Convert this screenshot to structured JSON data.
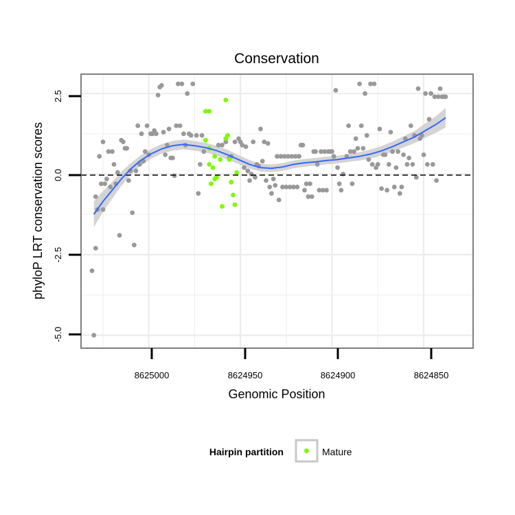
{
  "chart_data": {
    "type": "scatter",
    "title": "Conservation",
    "xlabel": "Genomic Position",
    "ylabel": "phyloP LRT conservation scores",
    "x_reversed": true,
    "xlim": [
      8625037,
      8624823
    ],
    "ylim": [
      -5.4,
      3.1
    ],
    "x_ticks": [
      8625000,
      8624950,
      8624900,
      8624850
    ],
    "x_tick_labels": [
      "8625000",
      "8624950",
      "8624900",
      "8624850"
    ],
    "y_ticks": [
      -5.0,
      -2.5,
      0.0,
      2.5
    ],
    "y_tick_labels": [
      "-5.0",
      "-2.5",
      "0.0",
      "2.5"
    ],
    "grid": true,
    "reference_line": {
      "y": 0,
      "style": "dashed"
    },
    "legend": {
      "title": "Hairpin partition",
      "position": "bottom"
    },
    "colors": {
      "grey_points": "#999999",
      "mature": "#7cfc00",
      "smooth_line": "#3366ff",
      "ribbon": "#cccccc"
    },
    "series": [
      {
        "name": "Mature",
        "legend": true,
        "color": "#7cfc00",
        "points": [
          [
            8624969,
            1.95
          ],
          [
            8624967,
            1.95
          ],
          [
            8624969,
            1.05
          ],
          [
            8624967,
            0.8
          ],
          [
            8624964,
            0.55
          ],
          [
            8624961,
            0.45
          ],
          [
            8624958,
            1.1
          ],
          [
            8624957,
            1.2
          ],
          [
            8624958,
            2.3
          ],
          [
            8624956,
            0.45
          ],
          [
            8624966,
            -0.3
          ],
          [
            8624964,
            -0.15
          ],
          [
            8624963,
            -0.1
          ],
          [
            8624967,
            0.3
          ],
          [
            8624960,
            -1.0
          ],
          [
            8624955,
            -0.25
          ],
          [
            8624954,
            -0.65
          ],
          [
            8624953,
            -0.95
          ],
          [
            8624952,
            0.05
          ],
          [
            8624965,
            0.2
          ]
        ]
      },
      {
        "name": "",
        "legend": false,
        "color": "#999999",
        "points": [
          [
            8625030,
            -5.0
          ],
          [
            8625031,
            -3.0
          ],
          [
            8625029,
            -2.3
          ],
          [
            8625028,
            -1.1
          ],
          [
            8625029,
            -0.7
          ],
          [
            8625027,
            0.55
          ],
          [
            8625026,
            -0.3
          ],
          [
            8625025,
            -1.1
          ],
          [
            8625025,
            1.0
          ],
          [
            8625024,
            -0.3
          ],
          [
            8625023,
            -0.15
          ],
          [
            8625022,
            0.7
          ],
          [
            8625021,
            -0.4
          ],
          [
            8625020,
            0.7
          ],
          [
            8625019,
            0.3
          ],
          [
            8625018,
            -0.3
          ],
          [
            8625017,
            0.05
          ],
          [
            8625016,
            -1.9
          ],
          [
            8625015,
            1.05
          ],
          [
            8625014,
            1.0
          ],
          [
            8625013,
            0.8
          ],
          [
            8625012,
            0.8
          ],
          [
            8625011,
            -0.2
          ],
          [
            8625010,
            0.1
          ],
          [
            8625009,
            -1.2
          ],
          [
            8625008,
            -2.2
          ],
          [
            8625007,
            0.1
          ],
          [
            8625006,
            1.5
          ],
          [
            8625005,
            0.3
          ],
          [
            8625004,
            1.25
          ],
          [
            8625003,
            0.4
          ],
          [
            8625002,
            0.7
          ],
          [
            8625001,
            1.5
          ],
          [
            8625000,
            0.6
          ],
          [
            8624999,
            1.25
          ],
          [
            8624998,
            1.25
          ],
          [
            8624997,
            1.35
          ],
          [
            8624996,
            1.25
          ],
          [
            8624995,
            2.45
          ],
          [
            8624994,
            2.7
          ],
          [
            8624993,
            2.75
          ],
          [
            8624992,
            1.3
          ],
          [
            8624991,
            0.6
          ],
          [
            8624990,
            0.9
          ],
          [
            8624989,
            1.4
          ],
          [
            8624988,
            0.5
          ],
          [
            8624987,
            0.5
          ],
          [
            8624986,
            -0.05
          ],
          [
            8624985,
            1.5
          ],
          [
            8624984,
            2.8
          ],
          [
            8624983,
            1.5
          ],
          [
            8624982,
            2.8
          ],
          [
            8624981,
            1.25
          ],
          [
            8624980,
            0.9
          ],
          [
            8624979,
            2.5
          ],
          [
            8624978,
            1.25
          ],
          [
            8624977,
            1.2
          ],
          [
            8624976,
            2.8
          ],
          [
            8624974,
            1.2
          ],
          [
            8624973,
            -0.6
          ],
          [
            8624972,
            0.3
          ],
          [
            8624971,
            1.2
          ],
          [
            8624970,
            0.7
          ],
          [
            8624962,
            0.9
          ],
          [
            8624960,
            0.9
          ],
          [
            8624958,
            1.0
          ],
          [
            8624956,
            0.5
          ],
          [
            8624955,
            0.55
          ],
          [
            8624953,
            1.0
          ],
          [
            8624951,
            1.1
          ],
          [
            8624950,
            1.0
          ],
          [
            8624949,
            0.9
          ],
          [
            8624948,
            0.2
          ],
          [
            8624947,
            0.85
          ],
          [
            8624946,
            0.1
          ],
          [
            8624945,
            -0.2
          ],
          [
            8624944,
            0.0
          ],
          [
            8624943,
            1.0
          ],
          [
            8624942,
            -0.1
          ],
          [
            8624941,
            0.3
          ],
          [
            8624940,
            0.25
          ],
          [
            8624939,
            1.4
          ],
          [
            8624938,
            0.4
          ],
          [
            8624937,
            1.0
          ],
          [
            8624936,
            -0.2
          ],
          [
            8624935,
            0.95
          ],
          [
            8624934,
            -0.4
          ],
          [
            8624933,
            -0.6
          ],
          [
            8624932,
            -0.15
          ],
          [
            8624931,
            -0.35
          ],
          [
            8624930,
            0.55
          ],
          [
            8624929,
            -0.8
          ],
          [
            8624928,
            0.55
          ],
          [
            8624927,
            -0.4
          ],
          [
            8624926,
            0.55
          ],
          [
            8624925,
            -0.4
          ],
          [
            8624924,
            0.55
          ],
          [
            8624923,
            -0.4
          ],
          [
            8624922,
            0.55
          ],
          [
            8624921,
            -0.4
          ],
          [
            8624920,
            0.55
          ],
          [
            8624919,
            -0.4
          ],
          [
            8624918,
            0.55
          ],
          [
            8624917,
            0.9
          ],
          [
            8624916,
            0.9
          ],
          [
            8624915,
            -0.5
          ],
          [
            8624914,
            -0.3
          ],
          [
            8624913,
            -0.7
          ],
          [
            8624912,
            -0.3
          ],
          [
            8624911,
            -0.7
          ],
          [
            8624910,
            0.7
          ],
          [
            8624909,
            0.7
          ],
          [
            8624908,
            0.3
          ],
          [
            8624907,
            -0.5
          ],
          [
            8624906,
            0.7
          ],
          [
            8624905,
            -0.5
          ],
          [
            8624904,
            0.7
          ],
          [
            8624903,
            -0.5
          ],
          [
            8624902,
            0.7
          ],
          [
            8624901,
            0.7
          ],
          [
            8624900,
            0.7
          ],
          [
            8624899,
            0.55
          ],
          [
            8624898,
            2.6
          ],
          [
            8624897,
            0.2
          ],
          [
            8624896,
            -0.3
          ],
          [
            8624895,
            -0.5
          ],
          [
            8624894,
            0.0
          ],
          [
            8624892,
            0.55
          ],
          [
            8624891,
            1.5
          ],
          [
            8624890,
            0.7
          ],
          [
            8624889,
            -0.3
          ],
          [
            8624888,
            0.7
          ],
          [
            8624887,
            1.1
          ],
          [
            8624886,
            0.8
          ],
          [
            8624885,
            2.8
          ],
          [
            8624884,
            1.5
          ],
          [
            8624883,
            0.8
          ],
          [
            8624882,
            2.5
          ],
          [
            8624881,
            1.2
          ],
          [
            8624880,
            0.45
          ],
          [
            8624879,
            2.8
          ],
          [
            8624878,
            0.3
          ],
          [
            8624877,
            2.8
          ],
          [
            8624876,
            0.2
          ],
          [
            8624875,
            0.3
          ],
          [
            8624874,
            1.4
          ],
          [
            8624873,
            -0.45
          ],
          [
            8624872,
            0.6
          ],
          [
            8624871,
            0.6
          ],
          [
            8624870,
            -0.5
          ],
          [
            8624869,
            0.3
          ],
          [
            8624868,
            1.3
          ],
          [
            8624867,
            0.7
          ],
          [
            8624866,
            -0.4
          ],
          [
            8624865,
            0.2
          ],
          [
            8624864,
            0.7
          ],
          [
            8624863,
            -0.6
          ],
          [
            8624862,
            -0.4
          ],
          [
            8624861,
            0.6
          ],
          [
            8624860,
            1.1
          ],
          [
            8624859,
            0.3
          ],
          [
            8624858,
            0.5
          ],
          [
            8624857,
            1.5
          ],
          [
            8624856,
            0.3
          ],
          [
            8624855,
            1.2
          ],
          [
            8624854,
            -0.1
          ],
          [
            8624853,
            2.65
          ],
          [
            8624852,
            1.1
          ],
          [
            8624851,
            1.2
          ],
          [
            8624850,
            0.6
          ],
          [
            8624849,
            2.5
          ],
          [
            8624848,
            0.3
          ],
          [
            8624847,
            1.7
          ],
          [
            8624846,
            2.5
          ],
          [
            8624845,
            0.3
          ],
          [
            8624844,
            2.4
          ],
          [
            8624843,
            -0.2
          ],
          [
            8624842,
            2.4
          ],
          [
            8624841,
            2.65
          ],
          [
            8624840,
            2.4
          ],
          [
            8624839,
            2.4
          ],
          [
            8624838,
            2.4
          ]
        ]
      }
    ],
    "smooth": {
      "x": [
        8625030,
        8625025,
        8625020,
        8625015,
        8625010,
        8625005,
        8624999,
        8624993,
        8624987,
        8624981,
        8624975,
        8624969,
        8624963,
        8624957,
        8624951,
        8624945,
        8624939,
        8624933,
        8624927,
        8624921,
        8624915,
        8624909,
        8624903,
        8624897,
        8624891,
        8624885,
        8624879,
        8624873,
        8624867,
        8624861,
        8624855,
        8624849,
        8624843,
        8624838
      ],
      "y": [
        -1.25,
        -0.85,
        -0.5,
        -0.15,
        0.15,
        0.4,
        0.62,
        0.78,
        0.88,
        0.92,
        0.88,
        0.82,
        0.73,
        0.6,
        0.45,
        0.3,
        0.2,
        0.18,
        0.22,
        0.3,
        0.35,
        0.38,
        0.42,
        0.45,
        0.5,
        0.55,
        0.62,
        0.72,
        0.85,
        1.0,
        1.15,
        1.35,
        1.55,
        1.75
      ],
      "se": [
        0.4,
        0.32,
        0.26,
        0.22,
        0.18,
        0.16,
        0.15,
        0.15,
        0.15,
        0.15,
        0.15,
        0.15,
        0.15,
        0.15,
        0.14,
        0.13,
        0.12,
        0.12,
        0.12,
        0.12,
        0.12,
        0.12,
        0.12,
        0.12,
        0.12,
        0.13,
        0.14,
        0.15,
        0.16,
        0.17,
        0.19,
        0.22,
        0.26,
        0.3
      ]
    }
  }
}
